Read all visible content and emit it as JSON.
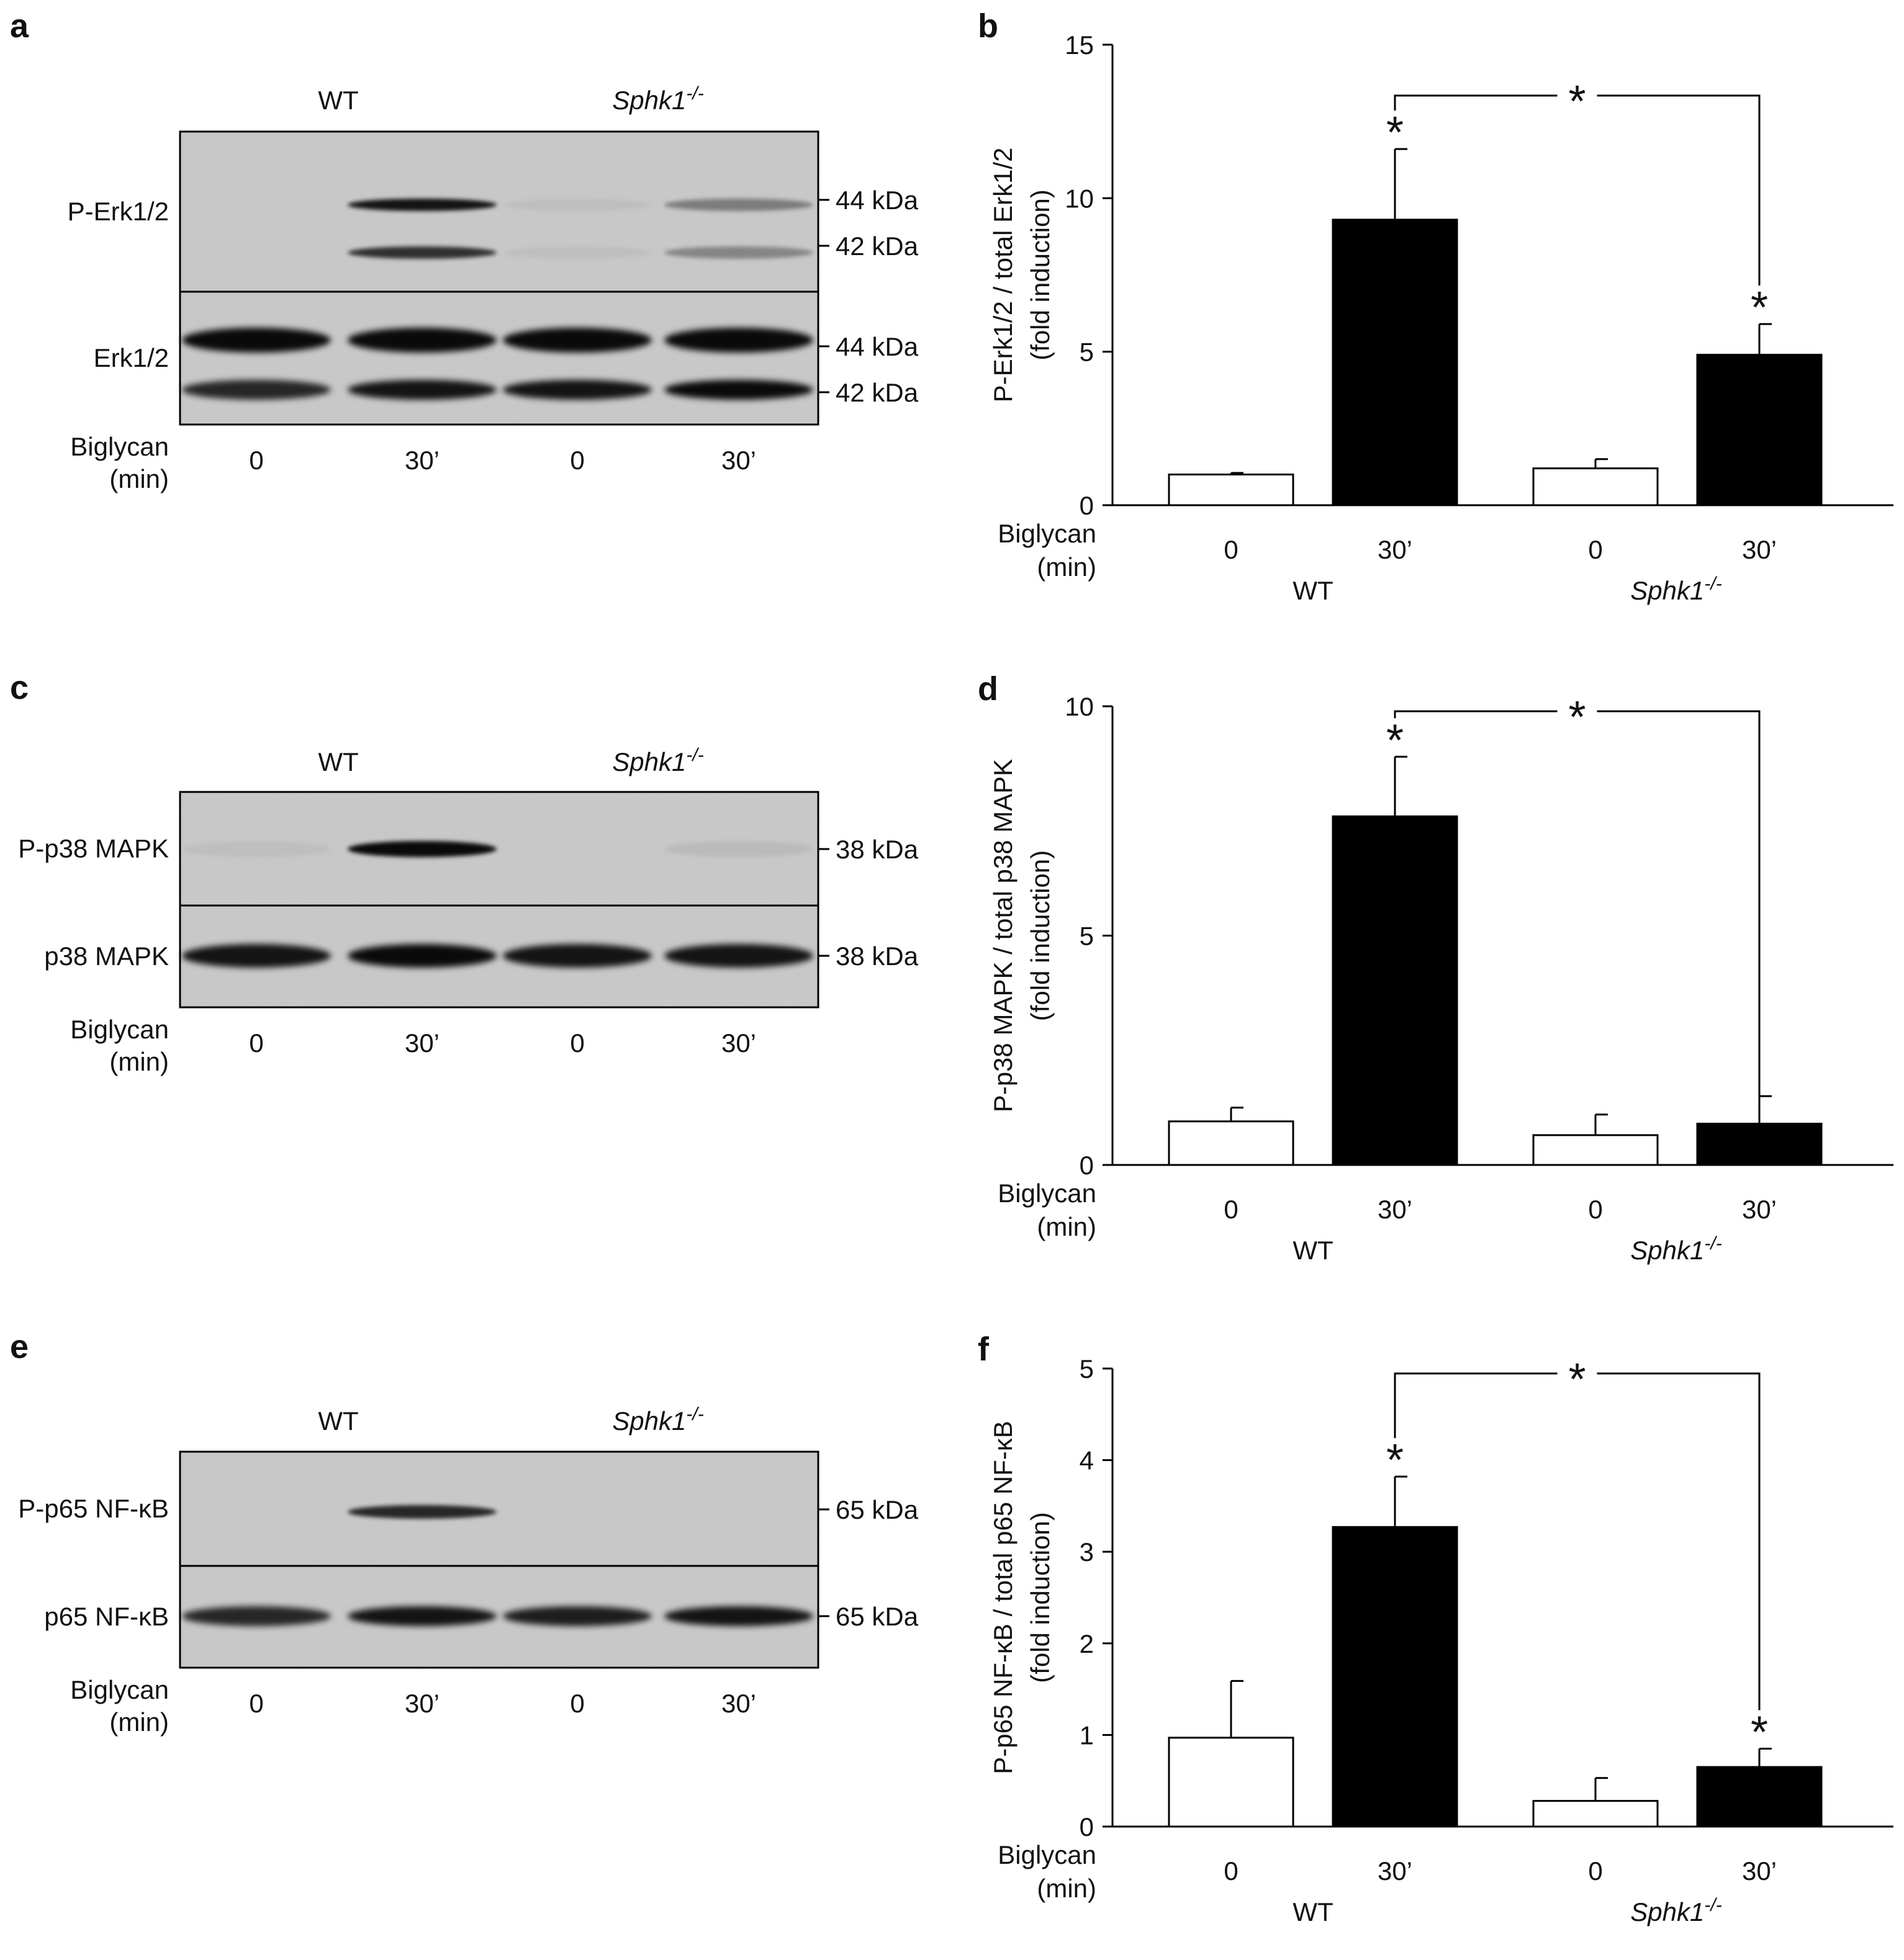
{
  "panels": {
    "a": {
      "letter": "a",
      "group_wt": "WT",
      "group_ko_main": "Sphk1",
      "group_ko_sup": "-/-",
      "strip1_label": "P-Erk1/2",
      "strip2_label": "Erk1/2",
      "strip1_markers": [
        "44 kDa",
        "42 kDa"
      ],
      "strip2_markers": [
        "44 kDa",
        "42 kDa"
      ],
      "treatment_label_1": "Biglycan",
      "treatment_label_2": "(min)",
      "lanes": [
        "0",
        "30’",
        "0",
        "30’"
      ]
    },
    "c": {
      "letter": "c",
      "group_wt": "WT",
      "group_ko_main": "Sphk1",
      "group_ko_sup": "-/-",
      "strip1_label": "P-p38 MAPK",
      "strip2_label": "p38 MAPK",
      "strip1_markers": [
        "38 kDa"
      ],
      "strip2_markers": [
        "38 kDa"
      ],
      "treatment_label_1": "Biglycan",
      "treatment_label_2": "(min)",
      "lanes": [
        "0",
        "30’",
        "0",
        "30’"
      ]
    },
    "e": {
      "letter": "e",
      "group_wt": "WT",
      "group_ko_main": "Sphk1",
      "group_ko_sup": "-/-",
      "strip1_label": "P-p65 NF-κB",
      "strip2_label": "p65 NF-κB",
      "strip1_markers": [
        "65 kDa"
      ],
      "strip2_markers": [
        "65 kDa"
      ],
      "treatment_label_1": "Biglycan",
      "treatment_label_2": "(min)",
      "lanes": [
        "0",
        "30’",
        "0",
        "30’"
      ]
    }
  },
  "chart_data": [
    {
      "panel": "b",
      "type": "bar",
      "ylabel_line1": "P-Erk1/2 / total Erk1/2",
      "ylabel_line2": "(fold induction)",
      "ylim": [
        0,
        15
      ],
      "yticks": [
        "0",
        "5",
        "10",
        "15"
      ],
      "categories": [
        "0",
        "30’",
        "0",
        "30’"
      ],
      "groups": [
        "WT",
        "Sphk1"
      ],
      "group_sup": "-/-",
      "treatment_label_1": "Biglycan",
      "treatment_label_2": "(min)",
      "values": [
        1.0,
        9.3,
        1.2,
        4.9
      ],
      "errors": [
        0.05,
        2.3,
        0.3,
        1.0
      ],
      "fills": [
        "#ffffff",
        "#000000",
        "#ffffff",
        "#000000"
      ],
      "bar_star": [
        false,
        true,
        false,
        true
      ],
      "bracket": true,
      "star": "*"
    },
    {
      "panel": "d",
      "type": "bar",
      "ylabel_line1": "P-p38 MAPK / total p38 MAPK",
      "ylabel_line2": "(fold induction)",
      "ylim": [
        0,
        10
      ],
      "yticks": [
        "0",
        "5",
        "10"
      ],
      "categories": [
        "0",
        "30’",
        "0",
        "30’"
      ],
      "groups": [
        "WT",
        "Sphk1"
      ],
      "group_sup": "-/-",
      "treatment_label_1": "Biglycan",
      "treatment_label_2": "(min)",
      "values": [
        0.95,
        7.6,
        0.65,
        0.9
      ],
      "errors": [
        0.3,
        1.3,
        0.45,
        0.6
      ],
      "fills": [
        "#ffffff",
        "#000000",
        "#ffffff",
        "#000000"
      ],
      "bar_star": [
        false,
        true,
        false,
        false
      ],
      "bracket": true,
      "star": "*"
    },
    {
      "panel": "f",
      "type": "bar",
      "ylabel_line1": "P-p65 NF-κB / total p65 NF-κB",
      "ylabel_line2": "(fold induction)",
      "ylim": [
        0,
        5
      ],
      "yticks": [
        "0",
        "1",
        "2",
        "3",
        "4",
        "5"
      ],
      "categories": [
        "0",
        "30’",
        "0",
        "30’"
      ],
      "groups": [
        "WT",
        "Sphk1"
      ],
      "group_sup": "-/-",
      "treatment_label_1": "Biglycan",
      "treatment_label_2": "(min)",
      "values": [
        0.97,
        3.27,
        0.28,
        0.65
      ],
      "errors": [
        0.62,
        0.55,
        0.25,
        0.2
      ],
      "fills": [
        "#ffffff",
        "#000000",
        "#ffffff",
        "#000000"
      ],
      "bar_star": [
        false,
        true,
        false,
        true
      ],
      "bracket": true,
      "star": "*"
    }
  ]
}
